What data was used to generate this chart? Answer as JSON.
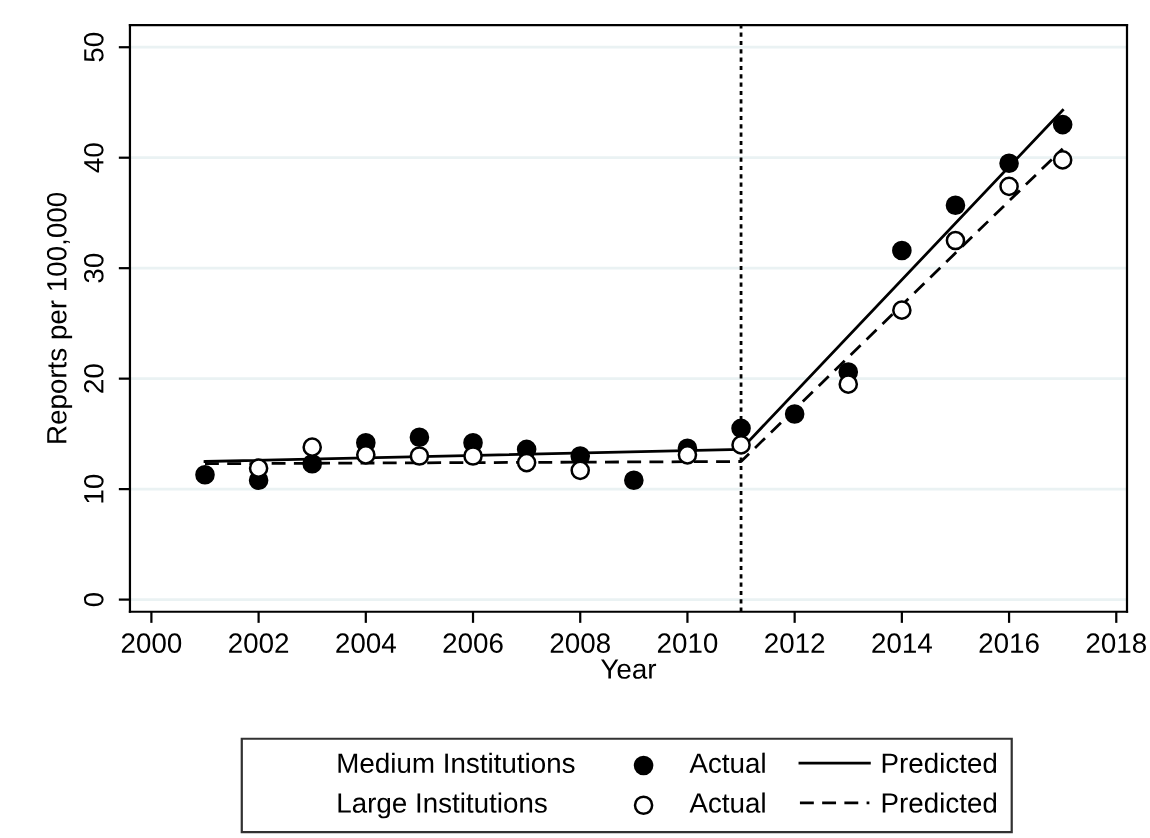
{
  "chart_data": {
    "type": "scatter",
    "xlabel": "Year",
    "ylabel": "Reports per 100,000",
    "annotations": [
      "Medium Institutions",
      "Large Institutions"
    ],
    "x": [
      2001,
      2002,
      2003,
      2004,
      2005,
      2006,
      2007,
      2008,
      2009,
      2010,
      2011,
      2012,
      2013,
      2014,
      2015,
      2016,
      2017
    ],
    "series": [
      {
        "name": "Actual",
        "marker": "circle",
        "color": "#000000",
        "values": [
          11.3,
          10.8,
          12.3,
          14.2,
          14.7,
          14.2,
          13.6,
          13.0,
          10.8,
          13.7,
          15.5,
          16.8,
          20.6,
          31.6,
          35.7,
          39.5,
          43.0
        ]
      },
      {
        "name": "Actual",
        "marker": "circle",
        "color": "#ffffff",
        "values": [
          null,
          11.9,
          13.8,
          13.1,
          13.0,
          13.0,
          12.4,
          11.7,
          null,
          13.1,
          14.0,
          null,
          19.5,
          26.2,
          32.5,
          37.4,
          39.8
        ]
      },
      {
        "name": "Predicted",
        "type": "line",
        "line_style": "solid",
        "color": "#000000",
        "x": [
          2001,
          2011,
          2017
        ],
        "values": [
          12.5,
          13.6,
          44.3
        ]
      },
      {
        "name": "Predicted",
        "type": "line",
        "line_style": "dashed",
        "color": "#000000",
        "x": [
          2001,
          2011,
          2017
        ],
        "values": [
          12.3,
          12.5,
          40.8
        ]
      }
    ],
    "xlim": [
      1999.6,
      2018.2
    ],
    "xticks": [
      2000,
      2002,
      2004,
      2006,
      2008,
      2010,
      2012,
      2014,
      2016,
      2018
    ],
    "ylim": [
      -1.1,
      52
    ],
    "yticks": [
      0,
      10,
      20,
      30,
      40,
      50
    ],
    "ref_lines": [
      {
        "axis": "x",
        "value": 2011,
        "line_style": "dotted",
        "color": "#000000"
      }
    ],
    "grid": "y",
    "legend": "bottom"
  }
}
